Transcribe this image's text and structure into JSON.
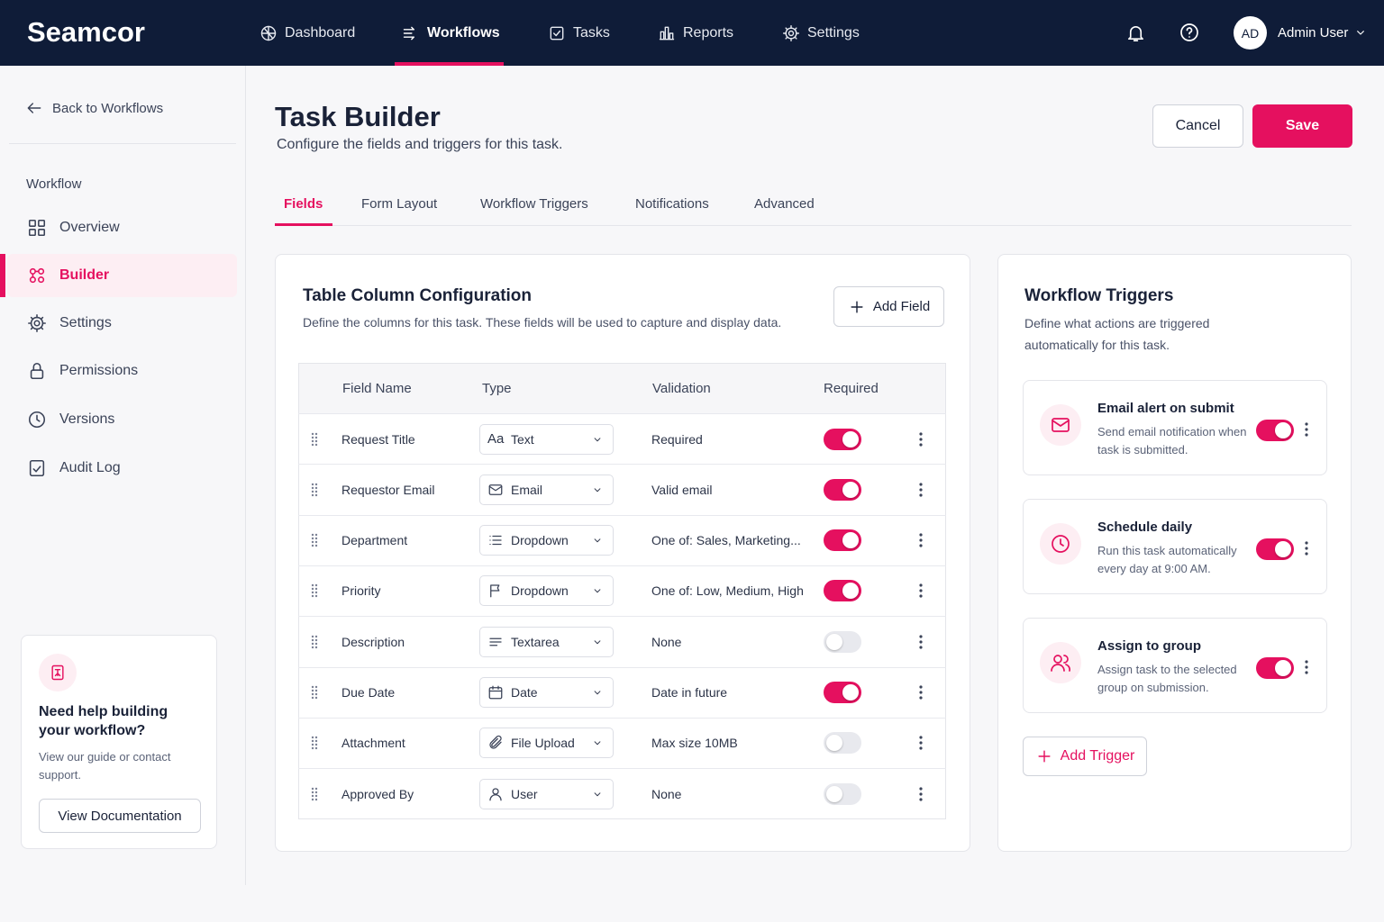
{
  "nav": {
    "brand": "Seamcor",
    "items": [
      "Dashboard",
      "Workflows",
      "Tasks",
      "Reports",
      "Settings"
    ],
    "active": 1,
    "user": {
      "initials": "AD",
      "name": "Admin User"
    }
  },
  "sidebar": {
    "back": "Back to Workflows",
    "section": "Workflow",
    "items": [
      "Overview",
      "Builder",
      "Settings",
      "Permissions",
      "Versions",
      "Audit Log"
    ],
    "active": 1,
    "help": {
      "title": "Need help building your workflow?",
      "text": "View our guide or contact support.",
      "button": "View Documentation"
    }
  },
  "header": {
    "title": "Task Builder",
    "subtitle": "Configure the fields and triggers for this task.",
    "cancel": "Cancel",
    "save": "Save"
  },
  "tabs": {
    "items": [
      "Fields",
      "Form Layout",
      "Workflow Triggers",
      "Notifications",
      "Advanced"
    ],
    "active": 0
  },
  "fields": {
    "title": "Table Column Configuration",
    "description": "Define the columns for this task. These fields will be used to capture and display data.",
    "add": "Add Field",
    "columns": [
      "Field Name",
      "Type",
      "Validation",
      "Required"
    ],
    "rows": [
      {
        "name": "Request Title",
        "type_glyph": "Aa",
        "type": "Text",
        "validation": "Required",
        "required": true
      },
      {
        "name": "Requestor Email",
        "type": "Email",
        "validation": "Valid email",
        "required": true
      },
      {
        "name": "Department",
        "type": "Dropdown",
        "validation": "One of: Sales, Marketing...",
        "required": true
      },
      {
        "name": "Priority",
        "type": "Dropdown",
        "validation": "One of: Low, Medium, High",
        "required": true
      },
      {
        "name": "Description",
        "type": "Textarea",
        "validation": "None",
        "required": false
      },
      {
        "name": "Due Date",
        "type": "Date",
        "validation": "Date in future",
        "required": true
      },
      {
        "name": "Attachment",
        "type": "File Upload",
        "validation": "Max size 10MB",
        "required": false
      },
      {
        "name": "Approved By",
        "type": "User",
        "validation": "None",
        "required": false
      }
    ]
  },
  "triggers": {
    "title": "Workflow Triggers",
    "description": "Define what actions are triggered automatically for this task.",
    "items": [
      {
        "title": "Email alert on submit",
        "text": "Send email notification when task is submitted.",
        "enabled": true
      },
      {
        "title": "Schedule daily",
        "text": "Run this task automatically every day at 9:00 AM.",
        "enabled": true
      },
      {
        "title": "Assign to group",
        "text": "Assign task to the selected group on submission.",
        "enabled": true
      }
    ],
    "add": "Add Trigger"
  }
}
